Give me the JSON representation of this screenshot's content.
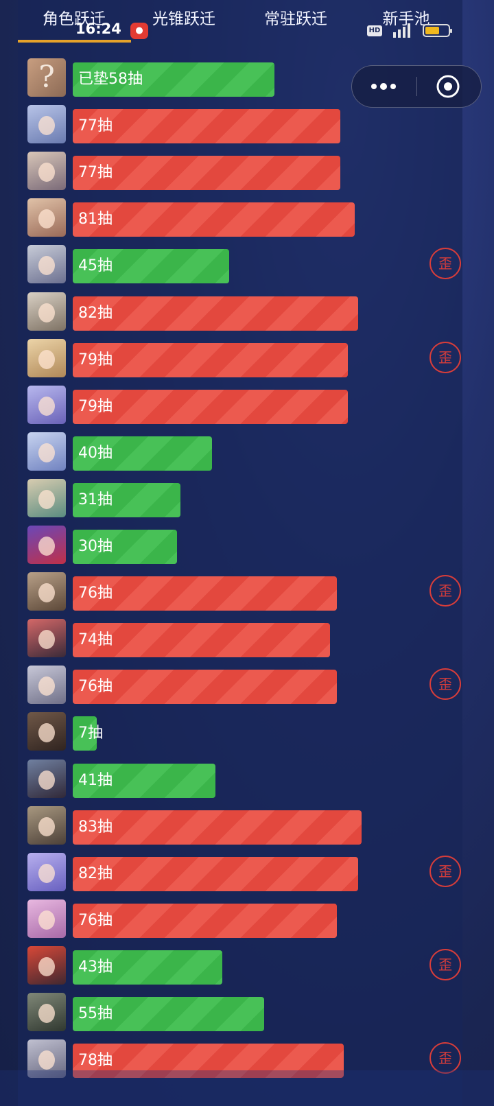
{
  "tabs": [
    {
      "label": "角色跃迁"
    },
    {
      "label": "光锥跃迁"
    },
    {
      "label": "常驻跃迁"
    },
    {
      "label": "新手池"
    }
  ],
  "status_bar": {
    "time": "16:24",
    "hd_label": "HD",
    "battery_level": 0.6
  },
  "colors": {
    "green": "#3bb54a",
    "red": "#e3483e",
    "wai_badge": "#d83d3a",
    "tab_underline": "#e5a22a"
  },
  "pity_max": 90,
  "rows": [
    {
      "label": "已垫58抽",
      "pulls": 58,
      "color": "green",
      "wai": false,
      "avatar": "question-mark"
    },
    {
      "label": "77抽",
      "pulls": 77,
      "color": "red",
      "wai": false
    },
    {
      "label": "77抽",
      "pulls": 77,
      "color": "red",
      "wai": false
    },
    {
      "label": "81抽",
      "pulls": 81,
      "color": "red",
      "wai": false
    },
    {
      "label": "45抽",
      "pulls": 45,
      "color": "green",
      "wai": true
    },
    {
      "label": "82抽",
      "pulls": 82,
      "color": "red",
      "wai": false
    },
    {
      "label": "79抽",
      "pulls": 79,
      "color": "red",
      "wai": true
    },
    {
      "label": "79抽",
      "pulls": 79,
      "color": "red",
      "wai": false
    },
    {
      "label": "40抽",
      "pulls": 40,
      "color": "green",
      "wai": false
    },
    {
      "label": "31抽",
      "pulls": 31,
      "color": "green",
      "wai": false
    },
    {
      "label": "30抽",
      "pulls": 30,
      "color": "green",
      "wai": false
    },
    {
      "label": "76抽",
      "pulls": 76,
      "color": "red",
      "wai": true
    },
    {
      "label": "74抽",
      "pulls": 74,
      "color": "red",
      "wai": false
    },
    {
      "label": "76抽",
      "pulls": 76,
      "color": "red",
      "wai": true
    },
    {
      "label": "7抽",
      "pulls": 7,
      "color": "green",
      "wai": false
    },
    {
      "label": "41抽",
      "pulls": 41,
      "color": "green",
      "wai": false
    },
    {
      "label": "83抽",
      "pulls": 83,
      "color": "red",
      "wai": false
    },
    {
      "label": "82抽",
      "pulls": 82,
      "color": "red",
      "wai": true
    },
    {
      "label": "76抽",
      "pulls": 76,
      "color": "red",
      "wai": false
    },
    {
      "label": "43抽",
      "pulls": 43,
      "color": "green",
      "wai": true
    },
    {
      "label": "55抽",
      "pulls": 55,
      "color": "green",
      "wai": false
    },
    {
      "label": "78抽",
      "pulls": 78,
      "color": "red",
      "wai": true
    }
  ],
  "wai_label": "歪",
  "avatar_palettes": [
    [
      "#c89e80",
      "#8c6a55"
    ],
    [
      "#b8c4e8",
      "#6a7bb0"
    ],
    [
      "#d8c6b8",
      "#7a6a78"
    ],
    [
      "#e0c2a8",
      "#9a6a58"
    ],
    [
      "#c8ccd8",
      "#6c7090"
    ],
    [
      "#d9d0c4",
      "#7e7264"
    ],
    [
      "#ecd4a8",
      "#b08858"
    ],
    [
      "#b8b8ee",
      "#6a62b8"
    ],
    [
      "#c8d4f0",
      "#7082c0"
    ],
    [
      "#d8ccb0",
      "#5a8c80"
    ],
    [
      "#6a48b8",
      "#c03048"
    ],
    [
      "#b8a088",
      "#5c4838"
    ],
    [
      "#d46868",
      "#3a2a38"
    ],
    [
      "#c8c8d8",
      "#707088"
    ],
    [
      "#705848",
      "#302420"
    ],
    [
      "#7080a0",
      "#302838"
    ],
    [
      "#a89880",
      "#4c4038"
    ],
    [
      "#b8b0ee",
      "#6860c0"
    ],
    [
      "#e8b8e0",
      "#a86aa8"
    ],
    [
      "#d84838",
      "#402830"
    ],
    [
      "#808878",
      "#303830"
    ],
    [
      "#c0c0d0",
      "#686880"
    ]
  ]
}
